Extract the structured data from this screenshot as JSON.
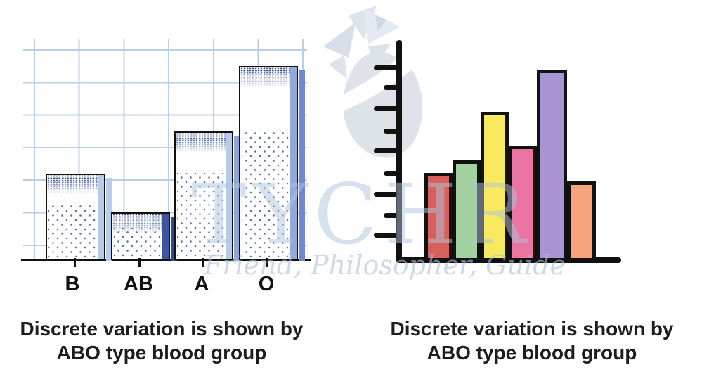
{
  "watermark": {
    "brand": "TYCHR",
    "tagline": "Friend, Philosopher, Guide"
  },
  "colors": {
    "grid_line": "#b9cfe9",
    "outline_black": "#111111",
    "stipple_blue": "#35508e",
    "shadow_light_blue": "#b7cce9",
    "shadow_dark_blue": "#32499c",
    "shadow_medium_blue": "#7288cc"
  },
  "chart_data": [
    {
      "type": "bar",
      "panel": "left",
      "title": "Discrete variation is shown by ABO type blood group",
      "title_lines": [
        "Discrete variation is shown by",
        "ABO type blood group"
      ],
      "categories": [
        "B",
        "AB",
        "A",
        "O"
      ],
      "values": [
        2.66,
        1.47,
        3.95,
        5.96
      ],
      "value_units": "grid squares (y-axis unlabeled; heights estimated from gridlines)",
      "xlabel": "",
      "ylabel": "",
      "grid": true,
      "legend": false,
      "style": "hand-drawn white bars with blue stipple shading, dotted fill and blue drop-shadow strips on squared paper"
    },
    {
      "type": "bar",
      "panel": "right",
      "title": "Discrete variation is shown by ABO type blood group",
      "title_lines": [
        "Discrete variation is shown by",
        "ABO type blood group"
      ],
      "categories": [
        "",
        "",
        "",
        "",
        "",
        ""
      ],
      "values": [
        4.2,
        4.8,
        7.1,
        5.5,
        9.1,
        3.8
      ],
      "value_units": "y-axis tick intervals (ticks unlabeled)",
      "bar_colors": [
        "#d8605c",
        "#a3d1a0",
        "#f8e95e",
        "#ec74a3",
        "#a893d3",
        "#f7a47c"
      ],
      "xlabel": "",
      "ylabel": "",
      "grid": false,
      "legend": false,
      "axis_ticks": {
        "count": 9,
        "pattern": "alternating long/short, unlabeled"
      }
    }
  ]
}
